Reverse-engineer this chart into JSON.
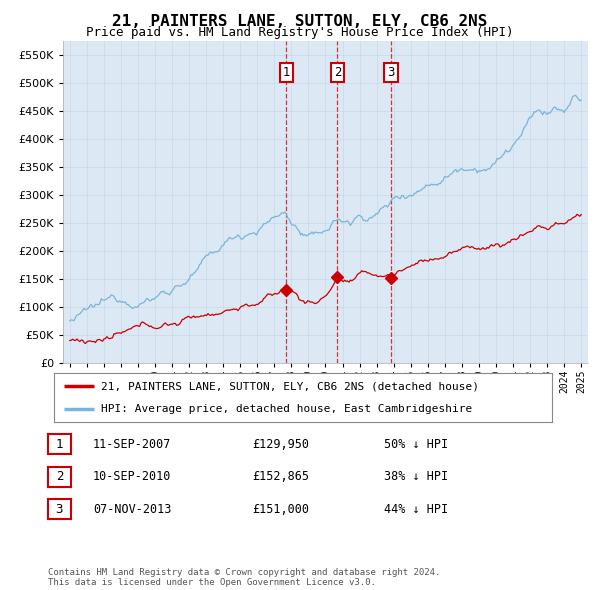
{
  "title": "21, PAINTERS LANE, SUTTON, ELY, CB6 2NS",
  "subtitle": "Price paid vs. HM Land Registry's House Price Index (HPI)",
  "background_color": "#ffffff",
  "plot_bg_color": "#dce9f5",
  "grid_color": "#c8d8e8",
  "hpi_color": "#7ab4d8",
  "price_color": "#cc0000",
  "vline_color": "#cc2222",
  "ylim": [
    0,
    575000
  ],
  "yticks": [
    0,
    50000,
    100000,
    150000,
    200000,
    250000,
    300000,
    350000,
    400000,
    450000,
    500000,
    550000
  ],
  "sales": [
    {
      "date_num": 2007.7,
      "price": 129950,
      "label": "1"
    },
    {
      "date_num": 2010.7,
      "price": 152865,
      "label": "2"
    },
    {
      "date_num": 2013.85,
      "price": 151000,
      "label": "3"
    }
  ],
  "legend_entries": [
    "21, PAINTERS LANE, SUTTON, ELY, CB6 2NS (detached house)",
    "HPI: Average price, detached house, East Cambridgeshire"
  ],
  "table_rows": [
    {
      "num": "1",
      "date": "11-SEP-2007",
      "price": "£129,950",
      "hpi": "50% ↓ HPI"
    },
    {
      "num": "2",
      "date": "10-SEP-2010",
      "price": "£152,865",
      "hpi": "38% ↓ HPI"
    },
    {
      "num": "3",
      "date": "07-NOV-2013",
      "price": "£151,000",
      "hpi": "44% ↓ HPI"
    }
  ],
  "footer": "Contains HM Land Registry data © Crown copyright and database right 2024.\nThis data is licensed under the Open Government Licence v3.0."
}
